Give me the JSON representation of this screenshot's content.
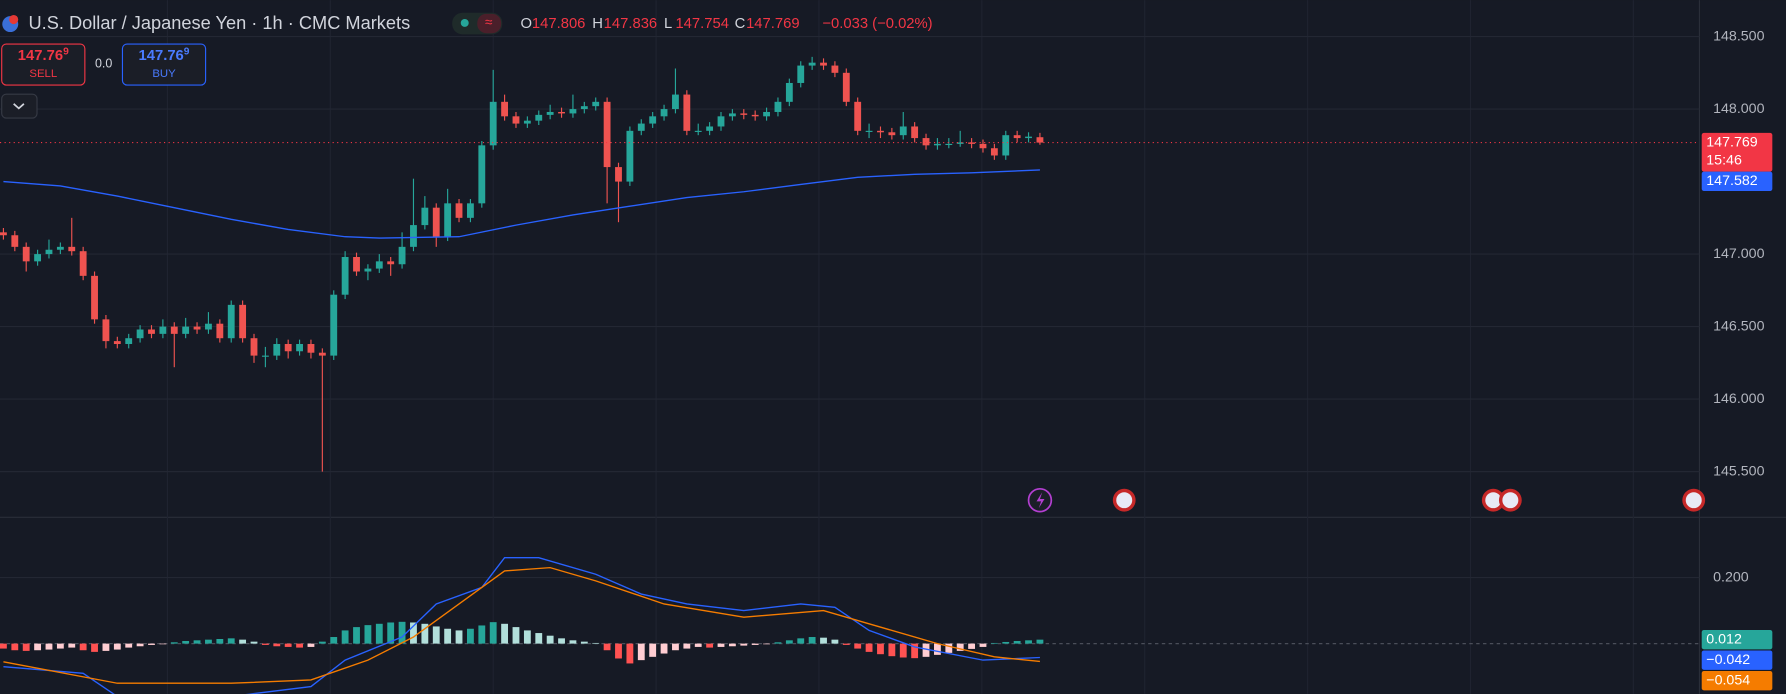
{
  "header": {
    "title": "U.S. Dollar / Japanese Yen · 1h · CMC Markets",
    "ohlc": [
      {
        "key": "O",
        "value": "147.806"
      },
      {
        "key": "H",
        "value": "147.836"
      },
      {
        "key": "L",
        "value": "147.754"
      },
      {
        "key": "C",
        "value": "147.769"
      }
    ],
    "change": "−0.033 (−0.02%)",
    "sell": {
      "price": "147.76",
      "pip": "9",
      "label": "SELL"
    },
    "spread": "0.0",
    "buy": {
      "price": "147.76",
      "pip": "9",
      "label": "BUY"
    }
  },
  "chart_data": [
    {
      "type": "candlestick",
      "up_color": "#26a69a",
      "down_color": "#ef5350",
      "xlim": [
        -0.3,
        148.7
      ],
      "ylim": [
        145.193,
        148.751
      ],
      "yticks": [
        {
          "value": 148.5,
          "label": "148.500"
        },
        {
          "value": 148.0,
          "label": "148.000"
        },
        {
          "value": 147.0,
          "label": "147.000"
        },
        {
          "value": 146.5,
          "label": "146.500"
        },
        {
          "value": 146.0,
          "label": "146.000"
        },
        {
          "value": 145.5,
          "label": "145.500"
        }
      ],
      "grid": true,
      "ohlc": [
        [
          147.15,
          147.18,
          147.1,
          147.13
        ],
        [
          147.13,
          147.16,
          147.02,
          147.05
        ],
        [
          147.05,
          147.08,
          146.88,
          146.95
        ],
        [
          146.95,
          147.03,
          146.92,
          147.0
        ],
        [
          147.0,
          147.1,
          146.97,
          147.03
        ],
        [
          147.03,
          147.08,
          147.0,
          147.05
        ],
        [
          147.05,
          147.25,
          146.99,
          147.02
        ],
        [
          147.02,
          147.05,
          146.82,
          146.85
        ],
        [
          146.85,
          146.88,
          146.52,
          146.55
        ],
        [
          146.55,
          146.58,
          146.35,
          146.4
        ],
        [
          146.4,
          146.43,
          146.35,
          146.38
        ],
        [
          146.38,
          146.45,
          146.35,
          146.42
        ],
        [
          146.42,
          146.51,
          146.39,
          146.48
        ],
        [
          146.48,
          146.51,
          146.42,
          146.45
        ],
        [
          146.45,
          146.55,
          146.42,
          146.5
        ],
        [
          146.5,
          146.53,
          146.22,
          146.45
        ],
        [
          146.45,
          146.56,
          146.42,
          146.5
        ],
        [
          146.5,
          146.53,
          146.45,
          146.48
        ],
        [
          146.48,
          146.6,
          146.45,
          146.52
        ],
        [
          146.52,
          146.55,
          146.39,
          146.42
        ],
        [
          146.42,
          146.68,
          146.39,
          146.65
        ],
        [
          146.65,
          146.68,
          146.39,
          146.42
        ],
        [
          146.42,
          146.45,
          146.25,
          146.3
        ],
        [
          146.3,
          146.36,
          146.22,
          146.3
        ],
        [
          146.3,
          146.42,
          146.27,
          146.38
        ],
        [
          146.38,
          146.41,
          146.28,
          146.33
        ],
        [
          146.33,
          146.41,
          146.3,
          146.38
        ],
        [
          146.38,
          146.41,
          146.28,
          146.32
        ],
        [
          146.32,
          146.35,
          145.5,
          146.3
        ],
        [
          146.3,
          146.75,
          146.27,
          146.72
        ],
        [
          146.72,
          147.02,
          146.69,
          146.98
        ],
        [
          146.98,
          147.01,
          146.85,
          146.88
        ],
        [
          146.88,
          146.93,
          146.82,
          146.9
        ],
        [
          146.9,
          147.0,
          146.87,
          146.95
        ],
        [
          146.95,
          146.98,
          146.85,
          146.93
        ],
        [
          146.93,
          147.15,
          146.9,
          147.05
        ],
        [
          147.05,
          147.52,
          147.02,
          147.2
        ],
        [
          147.2,
          147.4,
          147.17,
          147.32
        ],
        [
          147.32,
          147.35,
          147.05,
          147.12
        ],
        [
          147.12,
          147.45,
          147.09,
          147.35
        ],
        [
          147.35,
          147.38,
          147.22,
          147.25
        ],
        [
          147.25,
          147.38,
          147.22,
          147.35
        ],
        [
          147.35,
          147.78,
          147.32,
          147.75
        ],
        [
          147.75,
          148.27,
          147.72,
          148.05
        ],
        [
          148.05,
          148.1,
          147.92,
          147.95
        ],
        [
          147.95,
          147.98,
          147.87,
          147.9
        ],
        [
          147.9,
          147.95,
          147.87,
          147.92
        ],
        [
          147.92,
          147.99,
          147.89,
          147.96
        ],
        [
          147.96,
          148.03,
          147.93,
          147.98
        ],
        [
          147.98,
          148.01,
          147.94,
          147.97
        ],
        [
          147.97,
          148.1,
          147.94,
          148.0
        ],
        [
          148.0,
          148.05,
          147.97,
          148.02
        ],
        [
          148.02,
          148.08,
          147.99,
          148.05
        ],
        [
          148.05,
          148.08,
          147.35,
          147.6
        ],
        [
          147.6,
          147.63,
          147.22,
          147.5
        ],
        [
          147.5,
          147.88,
          147.47,
          147.85
        ],
        [
          147.85,
          147.93,
          147.82,
          147.9
        ],
        [
          147.9,
          147.98,
          147.87,
          147.95
        ],
        [
          147.95,
          148.03,
          147.92,
          148.0
        ],
        [
          148.0,
          148.28,
          147.97,
          148.1
        ],
        [
          148.1,
          148.13,
          147.82,
          147.85
        ],
        [
          147.85,
          147.9,
          147.82,
          147.85
        ],
        [
          147.85,
          147.91,
          147.82,
          147.88
        ],
        [
          147.88,
          147.98,
          147.85,
          147.95
        ],
        [
          147.95,
          148.0,
          147.92,
          147.97
        ],
        [
          147.97,
          148.0,
          147.93,
          147.96
        ],
        [
          147.96,
          147.99,
          147.92,
          147.95
        ],
        [
          147.95,
          148.01,
          147.92,
          147.98
        ],
        [
          147.98,
          148.08,
          147.95,
          148.05
        ],
        [
          148.05,
          148.21,
          148.02,
          148.18
        ],
        [
          148.18,
          148.33,
          148.15,
          148.3
        ],
        [
          148.3,
          148.36,
          148.27,
          148.32
        ],
        [
          148.32,
          148.35,
          148.27,
          148.3
        ],
        [
          148.3,
          148.33,
          148.22,
          148.25
        ],
        [
          148.25,
          148.28,
          148.02,
          148.05
        ],
        [
          148.05,
          148.08,
          147.82,
          147.85
        ],
        [
          147.85,
          147.9,
          147.8,
          147.85
        ],
        [
          147.85,
          147.88,
          147.8,
          147.84
        ],
        [
          147.84,
          147.87,
          147.79,
          147.82
        ],
        [
          147.82,
          147.98,
          147.79,
          147.88
        ],
        [
          147.88,
          147.91,
          147.77,
          147.8
        ],
        [
          147.8,
          147.83,
          147.72,
          147.75
        ],
        [
          147.75,
          147.8,
          147.72,
          147.76
        ],
        [
          147.76,
          147.8,
          147.73,
          147.76
        ],
        [
          147.76,
          147.85,
          147.74,
          147.77
        ],
        [
          147.77,
          147.8,
          147.73,
          147.76
        ],
        [
          147.76,
          147.79,
          147.7,
          147.73
        ],
        [
          147.73,
          147.76,
          147.65,
          147.68
        ],
        [
          147.68,
          147.85,
          147.65,
          147.82
        ],
        [
          147.82,
          147.85,
          147.77,
          147.8
        ],
        [
          147.8,
          147.84,
          147.77,
          147.81
        ],
        [
          147.806,
          147.836,
          147.754,
          147.769
        ]
      ],
      "series": [
        {
          "color": "#2962ff",
          "x": [
            0,
            5,
            10,
            15,
            20,
            25,
            30,
            33,
            40,
            45,
            50,
            55,
            60,
            65,
            70,
            75,
            80,
            85,
            91
          ],
          "values": [
            147.5,
            147.47,
            147.4,
            147.32,
            147.24,
            147.17,
            147.12,
            147.11,
            147.12,
            147.2,
            147.27,
            147.33,
            147.39,
            147.43,
            147.48,
            147.53,
            147.55,
            147.56,
            147.58
          ]
        }
      ],
      "last_price": {
        "value": 147.769,
        "label": "147.769",
        "color": "#f23645"
      },
      "countdown": "15:46",
      "ma_price": {
        "value": 147.582,
        "color": "#2962ff"
      }
    },
    {
      "type": "macd",
      "xlim": [
        -0.3,
        148.7
      ],
      "ylim": [
        -0.152,
        0.379
      ],
      "yticks": [
        {
          "value": 0.2,
          "label": "0.200"
        }
      ],
      "grid": true,
      "histogram": {
        "colors": [
          "#26a69a",
          "#b2dfdb",
          "#ff5252",
          "#ffcdd2"
        ],
        "values": [
          -0.015,
          -0.02,
          -0.022,
          -0.02,
          -0.018,
          -0.015,
          -0.012,
          -0.02,
          -0.025,
          -0.022,
          -0.018,
          -0.012,
          -0.008,
          -0.004,
          -0.002,
          0.004,
          0.008,
          0.01,
          0.012,
          0.014,
          0.016,
          0.012,
          0.006,
          -0.004,
          -0.008,
          -0.01,
          -0.012,
          -0.01,
          0.006,
          0.02,
          0.04,
          0.05,
          0.056,
          0.06,
          0.064,
          0.066,
          0.064,
          0.06,
          0.052,
          0.045,
          0.04,
          0.045,
          0.055,
          0.065,
          0.06,
          0.05,
          0.04,
          0.032,
          0.024,
          0.016,
          0.01,
          0.006,
          0.002,
          -0.02,
          -0.045,
          -0.06,
          -0.05,
          -0.04,
          -0.03,
          -0.02,
          -0.015,
          -0.01,
          -0.012,
          -0.01,
          -0.008,
          -0.006,
          -0.004,
          -0.002,
          0.004,
          0.01,
          0.016,
          0.02,
          0.018,
          0.012,
          -0.004,
          -0.015,
          -0.025,
          -0.032,
          -0.038,
          -0.042,
          -0.044,
          -0.04,
          -0.034,
          -0.028,
          -0.022,
          -0.016,
          -0.01,
          0.002,
          0.005,
          0.008,
          0.01,
          0.012
        ]
      },
      "series": [
        {
          "color": "#2962ff",
          "x": [
            0,
            7,
            10,
            20,
            27,
            30,
            35,
            38,
            42,
            44,
            47,
            52,
            56,
            60,
            65,
            70,
            73,
            76,
            80,
            86,
            91
          ],
          "values": [
            -0.07,
            -0.09,
            -0.16,
            -0.16,
            -0.13,
            -0.05,
            0.02,
            0.12,
            0.17,
            0.26,
            0.26,
            0.21,
            0.15,
            0.12,
            0.1,
            0.12,
            0.11,
            0.04,
            -0.01,
            -0.05,
            -0.042
          ]
        },
        {
          "color": "#f57c00",
          "x": [
            0,
            10,
            20,
            27,
            32,
            36,
            40,
            44,
            48,
            52,
            58,
            65,
            72,
            76,
            82,
            87,
            91
          ],
          "values": [
            -0.055,
            -0.12,
            -0.12,
            -0.11,
            -0.05,
            0.02,
            0.12,
            0.22,
            0.23,
            0.19,
            0.12,
            0.08,
            0.1,
            0.06,
            0.0,
            -0.04,
            -0.054
          ]
        }
      ],
      "badges": [
        {
          "value": 0.012,
          "label": "0.012",
          "color": "#26a69a"
        },
        {
          "value": -0.042,
          "label": "−0.042",
          "color": "#2962ff"
        },
        {
          "value": -0.054,
          "label": "−0.054",
          "color": "#f57c00"
        }
      ]
    }
  ]
}
